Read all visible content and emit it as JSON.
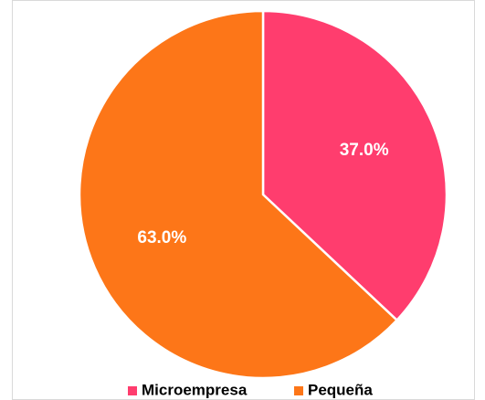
{
  "chart_data": {
    "type": "pie",
    "categories": [
      "Microempresa",
      "Pequeña"
    ],
    "values": [
      37.0,
      63.0
    ],
    "value_labels": [
      "37.0%",
      "63.0%"
    ],
    "colors": [
      "#ff3d6e",
      "#fd7618"
    ],
    "legend": "bottom"
  }
}
